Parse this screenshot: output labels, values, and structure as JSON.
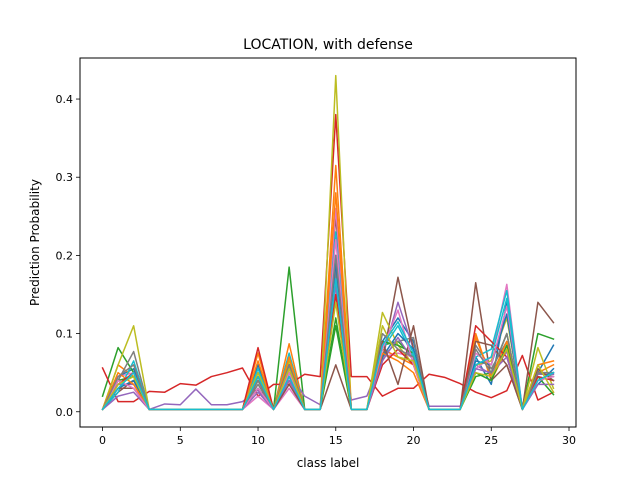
{
  "chart_data": {
    "type": "line",
    "title": "LOCATION, with defense",
    "xlabel": "class label",
    "ylabel": "Prediction Probability",
    "xlim": [
      -1.45,
      30.45
    ],
    "ylim": [
      -0.0195,
      0.4525
    ],
    "xticks": [
      0,
      5,
      10,
      15,
      20,
      25,
      30
    ],
    "yticks": [
      0.0,
      0.1,
      0.2,
      0.3,
      0.4
    ],
    "xtick_labels": [
      "0",
      "5",
      "10",
      "15",
      "20",
      "25",
      "30"
    ],
    "ytick_labels": [
      "0.0",
      "0.1",
      "0.2",
      "0.3",
      "0.4"
    ],
    "grid": false,
    "legend": "none",
    "x": [
      0,
      1,
      2,
      3,
      4,
      5,
      6,
      7,
      8,
      9,
      10,
      11,
      12,
      13,
      14,
      15,
      16,
      17,
      18,
      19,
      20,
      21,
      22,
      23,
      24,
      25,
      26,
      27,
      28,
      29
    ],
    "series": [
      {
        "color": "#1f77b4",
        "values": [
          0.003,
          0.045,
          0.055,
          0.003,
          0.003,
          0.003,
          0.003,
          0.003,
          0.003,
          0.003,
          0.06,
          0.003,
          0.06,
          0.003,
          0.003,
          0.2,
          0.003,
          0.003,
          0.09,
          0.12,
          0.09,
          0.003,
          0.003,
          0.003,
          0.07,
          0.035,
          0.14,
          0.003,
          0.05,
          0.085
        ]
      },
      {
        "color": "#ff7f0e",
        "values": [
          0.003,
          0.06,
          0.045,
          0.003,
          0.003,
          0.003,
          0.003,
          0.003,
          0.003,
          0.003,
          0.075,
          0.003,
          0.087,
          0.003,
          0.003,
          0.315,
          0.003,
          0.003,
          0.08,
          0.07,
          0.06,
          0.003,
          0.003,
          0.003,
          0.1,
          0.04,
          0.08,
          0.003,
          0.05,
          0.06
        ]
      },
      {
        "color": "#2ca02c",
        "values": [
          0.02,
          0.082,
          0.05,
          0.003,
          0.003,
          0.003,
          0.003,
          0.003,
          0.003,
          0.003,
          0.04,
          0.003,
          0.185,
          0.003,
          0.003,
          0.11,
          0.003,
          0.003,
          0.085,
          0.09,
          0.07,
          0.003,
          0.003,
          0.003,
          0.045,
          0.05,
          0.1,
          0.003,
          0.1,
          0.093
        ]
      },
      {
        "color": "#d62728",
        "values": [
          0.056,
          0.013,
          0.013,
          0.026,
          0.025,
          0.036,
          0.034,
          0.045,
          0.05,
          0.056,
          0.02,
          0.035,
          0.035,
          0.048,
          0.045,
          0.38,
          0.045,
          0.045,
          0.02,
          0.03,
          0.03,
          0.048,
          0.044,
          0.036,
          0.025,
          0.018,
          0.027,
          0.072,
          0.015,
          0.025
        ]
      },
      {
        "color": "#9467bd",
        "values": [
          0.003,
          0.035,
          0.035,
          0.003,
          0.01,
          0.009,
          0.029,
          0.009,
          0.009,
          0.013,
          0.028,
          0.003,
          0.05,
          0.02,
          0.009,
          0.16,
          0.015,
          0.02,
          0.07,
          0.14,
          0.08,
          0.007,
          0.007,
          0.007,
          0.06,
          0.048,
          0.077,
          0.003,
          0.048,
          0.048
        ]
      },
      {
        "color": "#8c564b",
        "values": [
          0.003,
          0.025,
          0.04,
          0.003,
          0.003,
          0.003,
          0.003,
          0.003,
          0.003,
          0.003,
          0.03,
          0.003,
          0.04,
          0.003,
          0.003,
          0.25,
          0.003,
          0.003,
          0.065,
          0.172,
          0.08,
          0.003,
          0.003,
          0.003,
          0.165,
          0.04,
          0.06,
          0.003,
          0.14,
          0.114
        ]
      },
      {
        "color": "#e377c2",
        "values": [
          0.003,
          0.045,
          0.05,
          0.003,
          0.003,
          0.003,
          0.003,
          0.003,
          0.003,
          0.003,
          0.02,
          0.003,
          0.03,
          0.003,
          0.003,
          0.26,
          0.003,
          0.003,
          0.07,
          0.075,
          0.07,
          0.003,
          0.003,
          0.003,
          0.055,
          0.07,
          0.163,
          0.003,
          0.045,
          0.04
        ]
      },
      {
        "color": "#7f7f7f",
        "values": [
          0.003,
          0.04,
          0.077,
          0.003,
          0.003,
          0.003,
          0.003,
          0.003,
          0.003,
          0.003,
          0.035,
          0.003,
          0.055,
          0.003,
          0.003,
          0.18,
          0.003,
          0.003,
          0.07,
          0.09,
          0.095,
          0.003,
          0.003,
          0.003,
          0.085,
          0.055,
          0.09,
          0.003,
          0.05,
          0.045
        ]
      },
      {
        "color": "#bcbd22",
        "values": [
          0.003,
          0.06,
          0.11,
          0.003,
          0.003,
          0.003,
          0.003,
          0.003,
          0.003,
          0.003,
          0.05,
          0.003,
          0.065,
          0.003,
          0.003,
          0.43,
          0.003,
          0.003,
          0.127,
          0.085,
          0.06,
          0.003,
          0.003,
          0.003,
          0.06,
          0.065,
          0.12,
          0.003,
          0.082,
          0.03
        ]
      },
      {
        "color": "#17becf",
        "values": [
          0.003,
          0.025,
          0.065,
          0.003,
          0.003,
          0.003,
          0.003,
          0.003,
          0.003,
          0.003,
          0.055,
          0.003,
          0.075,
          0.003,
          0.003,
          0.23,
          0.003,
          0.003,
          0.08,
          0.11,
          0.07,
          0.003,
          0.003,
          0.003,
          0.07,
          0.08,
          0.155,
          0.003,
          0.04,
          0.05
        ]
      },
      {
        "color": "#1f77b4",
        "values": [
          0.003,
          0.03,
          0.04,
          0.003,
          0.003,
          0.003,
          0.003,
          0.003,
          0.003,
          0.003,
          0.03,
          0.003,
          0.045,
          0.003,
          0.003,
          0.19,
          0.003,
          0.003,
          0.07,
          0.1,
          0.08,
          0.003,
          0.003,
          0.003,
          0.065,
          0.06,
          0.125,
          0.003,
          0.035,
          0.055
        ]
      },
      {
        "color": "#ff7f0e",
        "values": [
          0.003,
          0.05,
          0.035,
          0.003,
          0.003,
          0.003,
          0.003,
          0.003,
          0.003,
          0.003,
          0.065,
          0.003,
          0.07,
          0.003,
          0.003,
          0.28,
          0.003,
          0.003,
          0.075,
          0.065,
          0.05,
          0.003,
          0.003,
          0.003,
          0.095,
          0.045,
          0.09,
          0.003,
          0.06,
          0.065
        ]
      },
      {
        "color": "#2ca02c",
        "values": [
          0.003,
          0.04,
          0.045,
          0.003,
          0.003,
          0.003,
          0.003,
          0.003,
          0.003,
          0.003,
          0.045,
          0.003,
          0.05,
          0.003,
          0.003,
          0.12,
          0.003,
          0.003,
          0.09,
          0.085,
          0.075,
          0.003,
          0.003,
          0.003,
          0.05,
          0.04,
          0.085,
          0.003,
          0.045,
          0.022
        ]
      },
      {
        "color": "#d62728",
        "values": [
          0.003,
          0.035,
          0.05,
          0.003,
          0.003,
          0.003,
          0.003,
          0.003,
          0.003,
          0.003,
          0.082,
          0.003,
          0.06,
          0.003,
          0.003,
          0.15,
          0.003,
          0.003,
          0.06,
          0.08,
          0.06,
          0.003,
          0.003,
          0.003,
          0.11,
          0.09,
          0.07,
          0.003,
          0.045,
          0.04
        ]
      },
      {
        "color": "#9467bd",
        "values": [
          0.003,
          0.02,
          0.025,
          0.003,
          0.003,
          0.003,
          0.003,
          0.003,
          0.003,
          0.003,
          0.025,
          0.003,
          0.04,
          0.003,
          0.003,
          0.17,
          0.003,
          0.003,
          0.065,
          0.095,
          0.065,
          0.003,
          0.003,
          0.003,
          0.055,
          0.05,
          0.07,
          0.003,
          0.035,
          0.035
        ]
      },
      {
        "color": "#8c564b",
        "values": [
          0.003,
          0.03,
          0.03,
          0.003,
          0.003,
          0.003,
          0.003,
          0.003,
          0.003,
          0.003,
          0.04,
          0.003,
          0.035,
          0.003,
          0.003,
          0.06,
          0.003,
          0.003,
          0.09,
          0.035,
          0.11,
          0.003,
          0.003,
          0.003,
          0.09,
          0.085,
          0.06,
          0.003,
          0.055,
          0.04
        ]
      },
      {
        "color": "#e377c2",
        "values": [
          0.003,
          0.04,
          0.03,
          0.003,
          0.003,
          0.003,
          0.003,
          0.003,
          0.003,
          0.003,
          0.03,
          0.003,
          0.05,
          0.003,
          0.003,
          0.22,
          0.003,
          0.003,
          0.08,
          0.13,
          0.06,
          0.003,
          0.003,
          0.003,
          0.075,
          0.06,
          0.135,
          0.003,
          0.04,
          0.045
        ]
      },
      {
        "color": "#7f7f7f",
        "values": [
          0.003,
          0.045,
          0.06,
          0.003,
          0.003,
          0.003,
          0.003,
          0.003,
          0.003,
          0.003,
          0.04,
          0.003,
          0.06,
          0.003,
          0.003,
          0.2,
          0.003,
          0.003,
          0.1,
          0.08,
          0.07,
          0.003,
          0.003,
          0.003,
          0.08,
          0.05,
          0.1,
          0.003,
          0.05,
          0.05
        ]
      },
      {
        "color": "#bcbd22",
        "values": [
          0.003,
          0.035,
          0.045,
          0.003,
          0.003,
          0.003,
          0.003,
          0.003,
          0.003,
          0.003,
          0.05,
          0.003,
          0.055,
          0.003,
          0.003,
          0.14,
          0.003,
          0.003,
          0.11,
          0.07,
          0.065,
          0.003,
          0.003,
          0.003,
          0.05,
          0.045,
          0.08,
          0.003,
          0.06,
          0.025
        ]
      },
      {
        "color": "#17becf",
        "values": [
          0.003,
          0.03,
          0.05,
          0.003,
          0.003,
          0.003,
          0.003,
          0.003,
          0.003,
          0.003,
          0.045,
          0.003,
          0.045,
          0.003,
          0.003,
          0.17,
          0.003,
          0.003,
          0.085,
          0.115,
          0.075,
          0.003,
          0.003,
          0.003,
          0.06,
          0.07,
          0.145,
          0.003,
          0.04,
          0.05
        ]
      }
    ]
  }
}
